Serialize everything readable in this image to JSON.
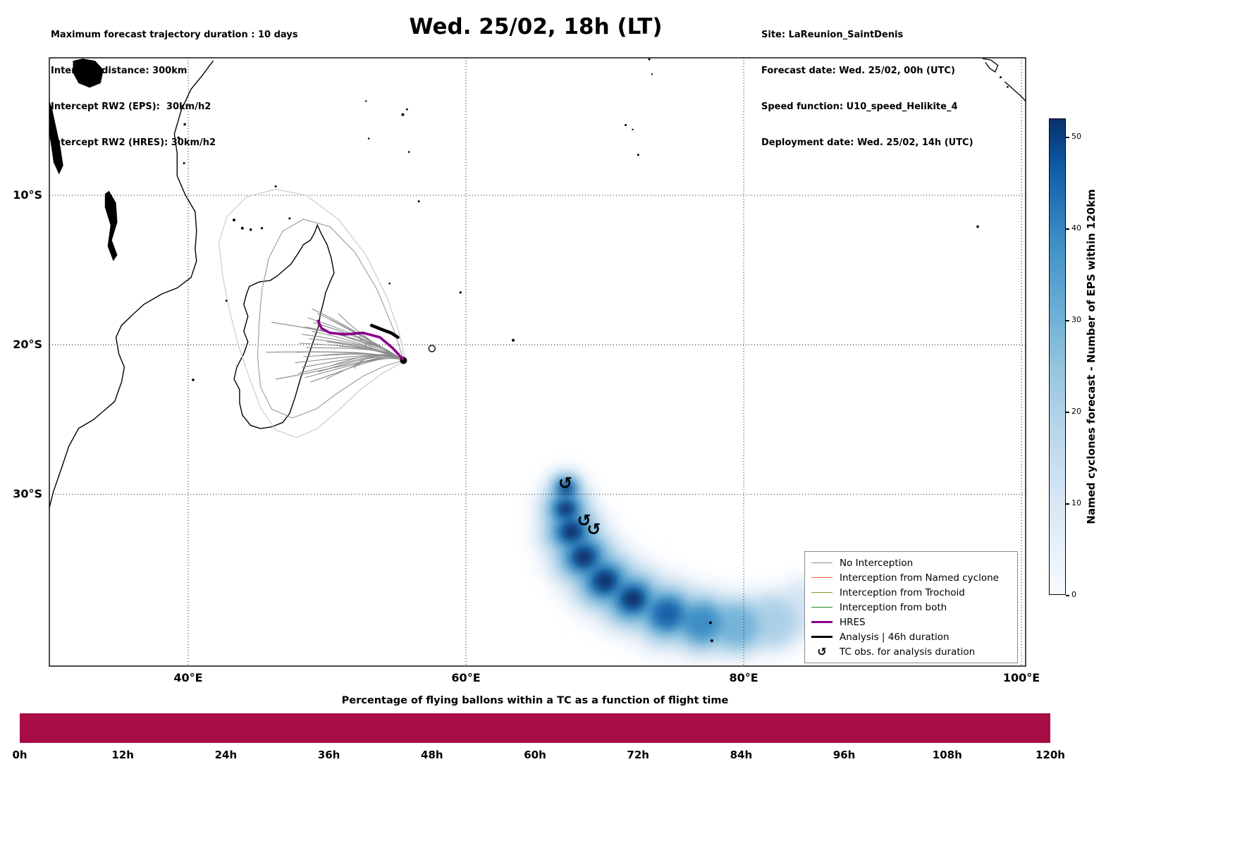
{
  "header": {
    "left_lines": [
      "Maximum forecast trajectory duration : 10 days",
      "Intercept distance: 300km",
      "Intercept RW2 (EPS):  30km/h2",
      "Intercept RW2 (HRES): 30km/h2"
    ],
    "title": "Wed. 25/02, 18h (LT)",
    "right_lines": [
      "Site: LaReunion_SaintDenis",
      "Forecast date: Wed. 25/02, 00h (UTC)",
      "Speed function: U10_speed_Helikite_4",
      "Deployment date: Wed. 25/02, 14h (UTC)"
    ]
  },
  "chart_data": [
    {
      "type": "map",
      "title": "Wed. 25/02, 18h (LT)",
      "extent_lon": [
        30,
        100.3
      ],
      "extent_lat": [
        -41.5,
        -0.8
      ],
      "grid": "dotted",
      "x_ticks": [
        {
          "lon": 40,
          "label": "40°E"
        },
        {
          "lon": 60,
          "label": "60°E"
        },
        {
          "lon": 80,
          "label": "80°E"
        },
        {
          "lon": 100,
          "label": "100°E"
        }
      ],
      "y_ticks": [
        {
          "lat": -10,
          "label": "10°S"
        },
        {
          "lat": -20,
          "label": "20°S"
        },
        {
          "lat": -30,
          "label": "30°S"
        }
      ],
      "deployment_site": {
        "name": "LaReunion_SaintDenis",
        "lonlat": [
          55.5,
          -21.05
        ]
      },
      "trajectories": {
        "origin": [
          55.5,
          -21.05
        ],
        "color": "#8a8a8a",
        "endpoints": [
          [
            48.9,
            -17.6
          ],
          [
            49.3,
            -17.9
          ],
          [
            48.6,
            -18.2
          ],
          [
            49.0,
            -18.5
          ],
          [
            48.4,
            -18.8
          ],
          [
            48.9,
            -19.1
          ],
          [
            48.2,
            -19.3
          ],
          [
            48.7,
            -19.6
          ],
          [
            48.0,
            -19.9
          ],
          [
            48.5,
            -20.2
          ],
          [
            47.8,
            -20.5
          ],
          [
            48.3,
            -20.8
          ],
          [
            47.7,
            -21.2
          ],
          [
            48.2,
            -21.5
          ],
          [
            47.9,
            -21.9
          ],
          [
            48.4,
            -22.2
          ],
          [
            48.8,
            -22.5
          ],
          [
            49.4,
            -21.8
          ],
          [
            49.9,
            -22.3
          ],
          [
            50.3,
            -21.4
          ],
          [
            49.6,
            -20.7
          ],
          [
            50.0,
            -19.8
          ],
          [
            50.6,
            -19.2
          ],
          [
            50.9,
            -20.1
          ],
          [
            46.0,
            -18.5
          ],
          [
            45.6,
            -20.5
          ],
          [
            46.3,
            -22.3
          ],
          [
            52.4,
            -19.4
          ],
          [
            52.0,
            -21.6
          ],
          [
            50.2,
            -18.3
          ],
          [
            50.8,
            -17.9
          ]
        ]
      },
      "envelopes": [
        {
          "color": "#cfcfcf",
          "width": 1.3,
          "points": [
            [
              55.6,
              -21.0
            ],
            [
              55.2,
              -19.2
            ],
            [
              54.3,
              -16.8
            ],
            [
              52.8,
              -14.0
            ],
            [
              50.8,
              -11.6
            ],
            [
              48.5,
              -10.0
            ],
            [
              46.3,
              -9.6
            ],
            [
              44.2,
              -10.1
            ],
            [
              42.8,
              -11.4
            ],
            [
              42.2,
              -13.2
            ],
            [
              42.5,
              -15.5
            ],
            [
              43.0,
              -17.8
            ],
            [
              43.6,
              -20.0
            ],
            [
              44.4,
              -22.2
            ],
            [
              45.2,
              -24.2
            ],
            [
              46.3,
              -25.7
            ],
            [
              47.8,
              -26.2
            ],
            [
              49.3,
              -25.6
            ],
            [
              50.8,
              -24.4
            ],
            [
              52.4,
              -23.0
            ],
            [
              54.0,
              -21.9
            ],
            [
              55.6,
              -21.1
            ]
          ]
        },
        {
          "color": "#9a9a9a",
          "width": 1.1,
          "points": [
            [
              55.5,
              -21.0
            ],
            [
              54.8,
              -19.0
            ],
            [
              53.6,
              -16.3
            ],
            [
              52.0,
              -13.8
            ],
            [
              50.2,
              -12.1
            ],
            [
              48.3,
              -11.6
            ],
            [
              46.8,
              -12.4
            ],
            [
              45.8,
              -14.2
            ],
            [
              45.3,
              -16.4
            ],
            [
              45.1,
              -18.6
            ],
            [
              45.0,
              -20.8
            ],
            [
              45.2,
              -22.8
            ],
            [
              46.0,
              -24.3
            ],
            [
              47.5,
              -24.9
            ],
            [
              49.2,
              -24.3
            ],
            [
              50.8,
              -23.2
            ],
            [
              52.6,
              -22.1
            ],
            [
              54.2,
              -21.4
            ],
            [
              55.5,
              -21.05
            ]
          ]
        }
      ],
      "hres_path": [
        [
          55.45,
          -20.95
        ],
        [
          54.7,
          -20.2
        ],
        [
          53.8,
          -19.5
        ],
        [
          52.6,
          -19.2
        ],
        [
          51.3,
          -19.3
        ],
        [
          50.2,
          -19.2
        ],
        [
          49.6,
          -18.9
        ],
        [
          49.35,
          -18.4
        ]
      ],
      "analysis_path": [
        [
          53.2,
          -18.7
        ],
        [
          54.0,
          -19.0
        ],
        [
          54.6,
          -19.2
        ],
        [
          55.1,
          -19.5
        ]
      ],
      "analysis_duration": "46h",
      "tc_obs_lonlat": [
        [
          67.15,
          -29.25
        ],
        [
          68.5,
          -31.75
        ],
        [
          69.2,
          -32.35
        ]
      ],
      "obs_dots_lonlat": [
        [
          77.6,
          -38.6
        ],
        [
          77.7,
          -39.8
        ]
      ],
      "heat_ridge": [
        [
          67.2,
          -29.6,
          1.2
        ],
        [
          67.2,
          -31.0,
          1.8
        ],
        [
          67.6,
          -32.5,
          2.2
        ],
        [
          68.5,
          -34.2,
          2.4
        ],
        [
          70.0,
          -35.8,
          2.5
        ],
        [
          72.0,
          -37.0,
          2.5
        ],
        [
          74.5,
          -38.0,
          2.5
        ],
        [
          77.0,
          -38.6,
          2.4
        ],
        [
          79.5,
          -38.8,
          2.2
        ],
        [
          82.0,
          -38.5,
          2.0
        ],
        [
          84.5,
          -37.6,
          1.8
        ],
        [
          86.0,
          -36.9,
          1.3
        ]
      ],
      "heat_layers": [
        {
          "color": "#e9f1fa",
          "blur": 15,
          "scale": 1.35,
          "from": 0,
          "to": 11
        },
        {
          "color": "#d3e4f3",
          "blur": 12,
          "scale": 1.1,
          "from": 0,
          "to": 10
        },
        {
          "color": "#abd0e6",
          "blur": 10,
          "scale": 0.9,
          "from": 0,
          "to": 9
        },
        {
          "color": "#75b4d8",
          "blur": 9,
          "scale": 0.7,
          "from": 0,
          "to": 8
        },
        {
          "color": "#3e8ec4",
          "blur": 8,
          "scale": 0.53,
          "from": 0,
          "to": 7
        },
        {
          "color": "#1562a9",
          "blur": 7,
          "scale": 0.38,
          "from": 0,
          "to": 6
        },
        {
          "color": "#08306b",
          "blur": 6,
          "scale": 0.26,
          "from": 0,
          "to": 5
        }
      ],
      "legend": [
        {
          "label": "No Interception",
          "color": "#8a8a8a",
          "lw": 1.5
        },
        {
          "label": "Interception from Named cyclone",
          "color": "#ff5c38",
          "lw": 1.5
        },
        {
          "label": "Interception from Trochoid",
          "color": "#8f8f30",
          "lw": 1.5
        },
        {
          "label": "Interception from both",
          "color": "#1e8c1e",
          "lw": 1.5
        },
        {
          "label": "HRES",
          "color": "#8b008b",
          "lw": 3.5
        },
        {
          "label": "Analysis | 46h duration",
          "color": "#000000",
          "lw": 3.5
        },
        {
          "label": "TC obs. for analysis duration",
          "symbol": "↺"
        }
      ]
    },
    {
      "type": "colorbar",
      "label": "Named cyclones forecast - Number of EPS within 120km",
      "range": [
        0,
        52
      ],
      "ticks": [
        0,
        10,
        20,
        30,
        40,
        50
      ],
      "colormap": "Blues"
    },
    {
      "type": "bar-strip",
      "title": "Percentage of flying ballons within a TC as a function of flight time",
      "x_ticks": [
        "0h",
        "12h",
        "24h",
        "36h",
        "48h",
        "60h",
        "72h",
        "84h",
        "96h",
        "108h",
        "120h"
      ],
      "x_range_hours": [
        0,
        120
      ],
      "value": "uniform",
      "uniform_color": "#a80d45"
    }
  ],
  "geo": {
    "africa_coast": [
      [
        41.8,
        -1.0
      ],
      [
        41.0,
        -2.0
      ],
      [
        40.2,
        -2.9
      ],
      [
        39.5,
        -4.3
      ],
      [
        39.0,
        -5.9
      ],
      [
        39.2,
        -7.2
      ],
      [
        39.2,
        -8.7
      ],
      [
        39.8,
        -10.0
      ],
      [
        40.5,
        -11.1
      ],
      [
        40.6,
        -12.4
      ],
      [
        40.5,
        -13.6
      ],
      [
        40.6,
        -14.4
      ],
      [
        40.2,
        -15.5
      ],
      [
        39.2,
        -16.2
      ],
      [
        38.1,
        -16.6
      ],
      [
        36.8,
        -17.3
      ],
      [
        36.1,
        -17.9
      ],
      [
        35.2,
        -18.7
      ],
      [
        34.8,
        -19.5
      ],
      [
        35.0,
        -20.6
      ],
      [
        35.4,
        -21.5
      ],
      [
        35.2,
        -22.5
      ],
      [
        34.7,
        -23.8
      ],
      [
        33.2,
        -25.0
      ],
      [
        32.1,
        -25.6
      ],
      [
        31.4,
        -26.8
      ],
      [
        30.9,
        -28.2
      ],
      [
        30.3,
        -29.8
      ],
      [
        30.0,
        -30.9
      ]
    ],
    "madagascar_coast": [
      [
        49.3,
        -12.0
      ],
      [
        49.6,
        -12.6
      ],
      [
        50.0,
        -13.3
      ],
      [
        50.3,
        -14.2
      ],
      [
        50.5,
        -15.2
      ],
      [
        50.3,
        -15.6
      ],
      [
        49.9,
        -16.5
      ],
      [
        49.7,
        -17.3
      ],
      [
        49.5,
        -18.0
      ],
      [
        49.4,
        -18.7
      ],
      [
        49.0,
        -19.8
      ],
      [
        48.6,
        -20.9
      ],
      [
        48.1,
        -22.2
      ],
      [
        47.7,
        -23.5
      ],
      [
        47.3,
        -24.6
      ],
      [
        46.8,
        -25.2
      ],
      [
        46.0,
        -25.5
      ],
      [
        45.2,
        -25.6
      ],
      [
        44.5,
        -25.4
      ],
      [
        43.9,
        -24.7
      ],
      [
        43.7,
        -23.9
      ],
      [
        43.7,
        -23.0
      ],
      [
        43.3,
        -22.3
      ],
      [
        43.5,
        -21.5
      ],
      [
        44.0,
        -20.6
      ],
      [
        44.3,
        -19.8
      ],
      [
        44.0,
        -19.1
      ],
      [
        44.3,
        -18.1
      ],
      [
        44.0,
        -17.3
      ],
      [
        44.2,
        -16.6
      ],
      [
        44.4,
        -16.1
      ],
      [
        45.1,
        -15.8
      ],
      [
        45.9,
        -15.7
      ],
      [
        46.4,
        -15.4
      ],
      [
        46.9,
        -15.0
      ],
      [
        47.4,
        -14.6
      ],
      [
        47.9,
        -13.9
      ],
      [
        48.3,
        -13.3
      ],
      [
        48.8,
        -13.0
      ],
      [
        49.1,
        -12.5
      ],
      [
        49.3,
        -12.0
      ]
    ],
    "lakes": [
      [
        [
          31.7,
          -1.0
        ],
        [
          32.4,
          -0.85
        ],
        [
          33.3,
          -1.0
        ],
        [
          33.9,
          -1.6
        ],
        [
          33.7,
          -2.5
        ],
        [
          32.9,
          -2.8
        ],
        [
          32.1,
          -2.5
        ],
        [
          31.7,
          -1.8
        ]
      ],
      [
        [
          29.9,
          -3.4
        ],
        [
          30.2,
          -4.2
        ],
        [
          30.5,
          -5.5
        ],
        [
          30.8,
          -6.8
        ],
        [
          31.0,
          -8.0
        ],
        [
          30.7,
          -8.6
        ],
        [
          30.3,
          -7.8
        ],
        [
          30.1,
          -6.5
        ],
        [
          29.8,
          -5.0
        ],
        [
          29.7,
          -3.9
        ]
      ],
      [
        [
          34.3,
          -9.7
        ],
        [
          34.8,
          -10.5
        ],
        [
          34.9,
          -11.8
        ],
        [
          34.5,
          -13.0
        ],
        [
          34.9,
          -14.0
        ],
        [
          34.6,
          -14.4
        ],
        [
          34.2,
          -13.4
        ],
        [
          34.4,
          -12.0
        ],
        [
          34.0,
          -10.8
        ],
        [
          34.0,
          -9.9
        ]
      ]
    ],
    "islets": [
      [
        43.3,
        -11.65,
        2
      ],
      [
        43.9,
        -12.2,
        2
      ],
      [
        44.5,
        -12.3,
        1.8
      ],
      [
        45.3,
        -12.2,
        1.6
      ],
      [
        47.3,
        -11.55,
        1.5
      ],
      [
        42.75,
        -17.05,
        1.5
      ],
      [
        40.35,
        -22.35,
        1.8
      ],
      [
        39.75,
        -5.25,
        1.8
      ],
      [
        39.3,
        -6.15,
        1.8
      ],
      [
        39.7,
        -7.85,
        1.5
      ],
      [
        46.3,
        -9.4,
        1.5
      ],
      [
        55.45,
        -4.6,
        2
      ],
      [
        55.75,
        -4.25,
        1.4
      ],
      [
        53.0,
        -6.2,
        1.3
      ],
      [
        52.8,
        -3.7,
        1.2
      ],
      [
        55.9,
        -7.1,
        1.3
      ],
      [
        56.6,
        -10.4,
        1.5
      ],
      [
        54.5,
        -15.9,
        1.3
      ],
      [
        59.6,
        -16.5,
        1.6
      ],
      [
        63.4,
        -19.7,
        2
      ],
      [
        71.5,
        -5.3,
        1.5
      ],
      [
        72.0,
        -5.6,
        1.2
      ],
      [
        72.4,
        -7.3,
        1.5
      ],
      [
        73.2,
        -0.9,
        1.5
      ],
      [
        73.4,
        -1.9,
        1.2
      ],
      [
        96.85,
        -12.1,
        1.8
      ],
      [
        98.5,
        -2.1,
        1.5
      ],
      [
        99.0,
        -2.75,
        1.3
      ]
    ],
    "mauritius": [
      57.55,
      -20.25
    ],
    "reunion": [
      55.5,
      -21.05
    ],
    "sumatra": [
      [
        [
          97.2,
          -0.85
        ],
        [
          97.8,
          -0.95
        ],
        [
          98.3,
          -1.3
        ],
        [
          98.1,
          -1.75
        ],
        [
          97.7,
          -1.5
        ],
        [
          97.4,
          -1.1
        ]
      ],
      [
        [
          98.8,
          -2.4
        ],
        [
          99.4,
          -2.9
        ],
        [
          100.0,
          -3.4
        ],
        [
          100.3,
          -3.7
        ]
      ]
    ]
  }
}
